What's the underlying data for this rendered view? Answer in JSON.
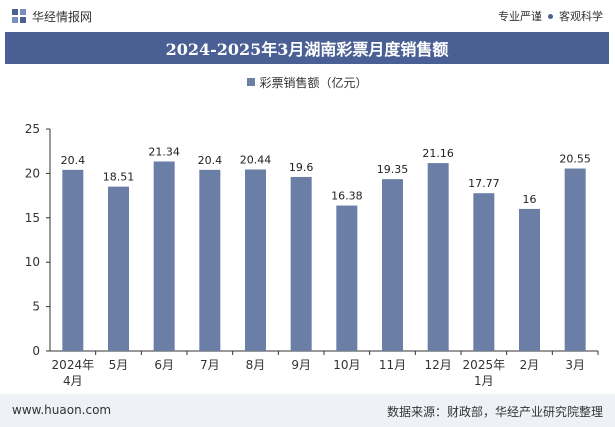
{
  "header": {
    "brand": "华经情报网",
    "tagline_left": "专业严谨",
    "tagline_right": "客观科学"
  },
  "legend_label": "彩票销售额（亿元）",
  "footer": {
    "site": "www.huaon.com",
    "source": "数据来源：财政部，华经产业研究院整理"
  },
  "colors": {
    "bar": "#6a7ea6",
    "title_band": "#4a5f94",
    "axis": "#333333"
  },
  "chart_data": {
    "type": "bar",
    "title": "2024-2025年3月湖南彩票月度销售额",
    "series": [
      {
        "name": "彩票销售额（亿元）",
        "values": [
          20.4,
          18.51,
          21.34,
          20.4,
          20.44,
          19.6,
          16.38,
          19.35,
          21.16,
          17.77,
          16,
          20.55
        ]
      }
    ],
    "categories": [
      "2024年4月",
      "5月",
      "6月",
      "7月",
      "8月",
      "9月",
      "10月",
      "11月",
      "12月",
      "2025年1月",
      "2月",
      "3月"
    ],
    "value_labels": [
      "20.4",
      "18.51",
      "21.34",
      "20.4",
      "20.44",
      "19.6",
      "16.38",
      "19.35",
      "21.16",
      "17.77",
      "16",
      "20.55"
    ],
    "ylim": [
      0,
      25
    ],
    "yticks": [
      0,
      5,
      10,
      15,
      20,
      25
    ],
    "grid": false
  }
}
